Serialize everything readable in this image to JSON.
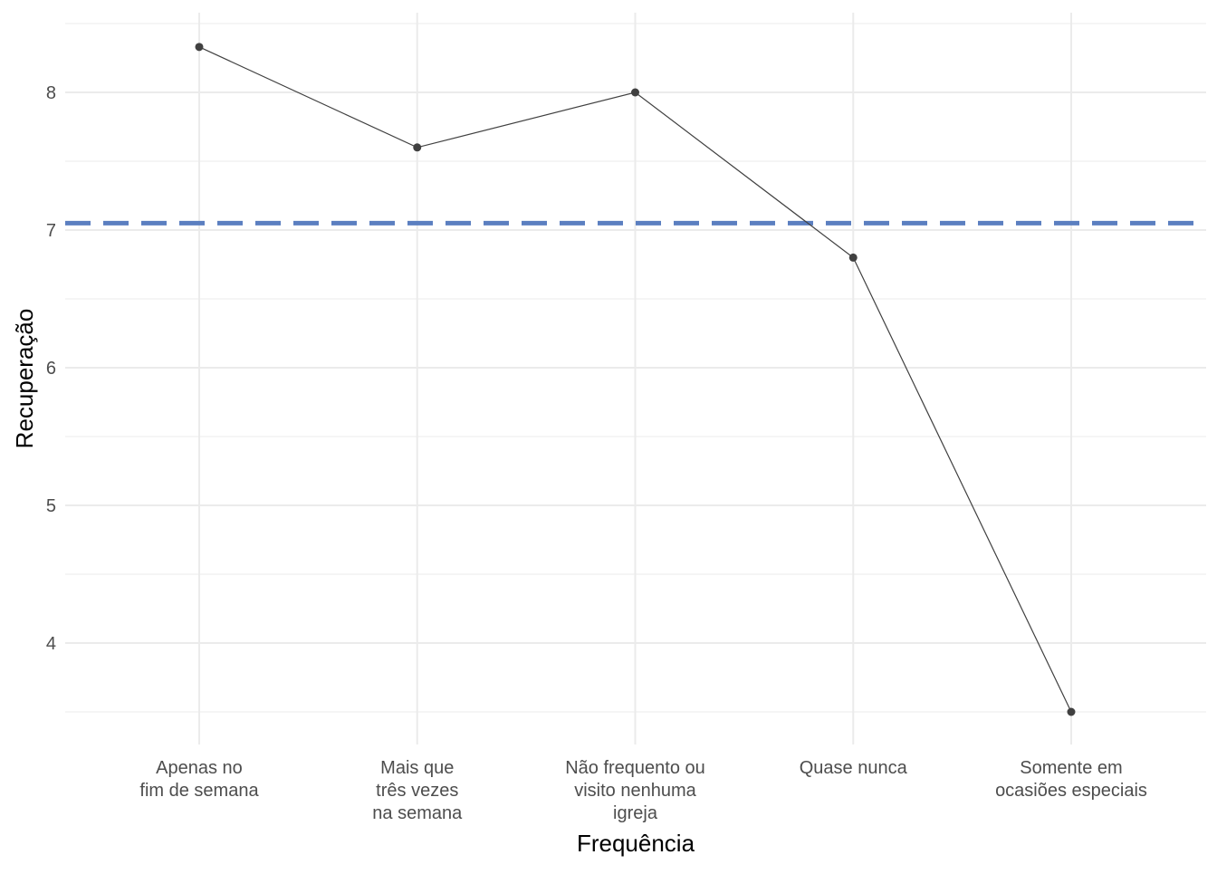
{
  "chart_data": {
    "type": "line",
    "title": "",
    "xlabel": "Frequência",
    "ylabel": "Recuperação",
    "categories": [
      [
        "Apenas no",
        "fim de semana"
      ],
      [
        "Mais que",
        "três vezes",
        "na semana"
      ],
      [
        "Não frequento ou",
        "visito nenhuma",
        "igreja"
      ],
      [
        "Quase nunca"
      ],
      [
        "Somente em",
        "ocasiões especiais"
      ]
    ],
    "series": [
      {
        "values": [
          8.33,
          7.6,
          8.0,
          6.8,
          3.5
        ]
      }
    ],
    "reference_line": {
      "value": 7.05,
      "style": "dashed",
      "color": "#5B7FC0"
    },
    "ylim": [
      3.25,
      8.6
    ],
    "y_ticks": [
      4,
      5,
      6,
      7,
      8
    ],
    "grid": true,
    "legend": "none",
    "colors": {
      "line": "#404040",
      "point": "#404040",
      "grid": "#ebebeb",
      "tick_text": "#4d4d4d",
      "axis_title": "#000000"
    }
  }
}
